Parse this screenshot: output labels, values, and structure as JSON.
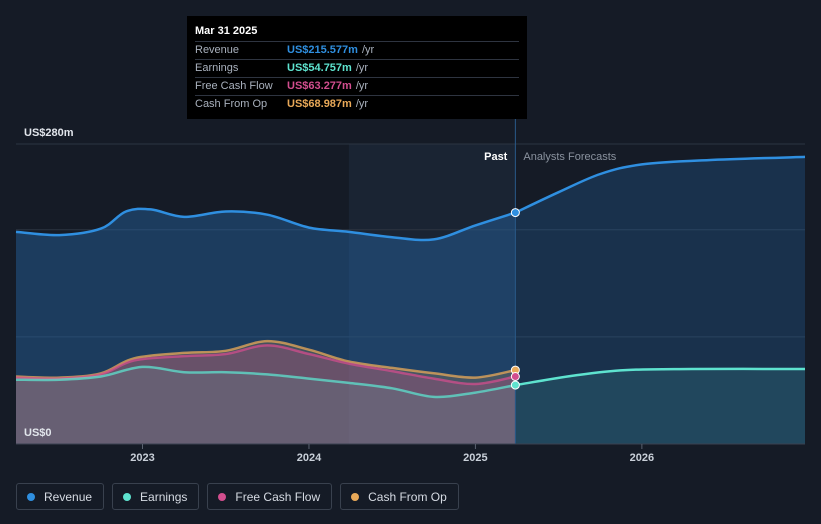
{
  "chart_data": {
    "type": "area",
    "title": "",
    "xlabel": "",
    "ylabel": "",
    "y_label_top": "US$280m",
    "y_label_bottom": "US$0",
    "ylim": [
      0,
      280
    ],
    "xlim": [
      2022.24,
      2026.98
    ],
    "x_ticks": [
      {
        "value": 2023,
        "label": "2023"
      },
      {
        "value": 2024,
        "label": "2024"
      },
      {
        "value": 2025,
        "label": "2025"
      },
      {
        "value": 2026,
        "label": "2026"
      }
    ],
    "past_label": "Past",
    "forecast_label": "Analysts Forecasts",
    "past_end": 2025.24,
    "highlight_start": 2024.24,
    "series": [
      {
        "name": "Revenue",
        "color": "#2f8fe0",
        "past": [
          [
            2022.24,
            198
          ],
          [
            2022.5,
            195
          ],
          [
            2022.75,
            201
          ],
          [
            2022.9,
            217
          ],
          [
            2023.05,
            219
          ],
          [
            2023.25,
            212
          ],
          [
            2023.5,
            217
          ],
          [
            2023.75,
            214
          ],
          [
            2024.0,
            202
          ],
          [
            2024.24,
            198
          ],
          [
            2024.5,
            193
          ],
          [
            2024.75,
            191
          ],
          [
            2025.0,
            204
          ],
          [
            2025.24,
            216
          ]
        ],
        "forecast": [
          [
            2025.24,
            216
          ],
          [
            2025.5,
            235
          ],
          [
            2025.75,
            252
          ],
          [
            2026.0,
            261
          ],
          [
            2026.4,
            265
          ],
          [
            2026.98,
            268
          ]
        ]
      },
      {
        "name": "Earnings",
        "color": "#5ee3cf",
        "past": [
          [
            2022.24,
            60
          ],
          [
            2022.5,
            60
          ],
          [
            2022.75,
            63
          ],
          [
            2023.0,
            72
          ],
          [
            2023.25,
            67
          ],
          [
            2023.5,
            67
          ],
          [
            2023.75,
            65
          ],
          [
            2024.0,
            61
          ],
          [
            2024.24,
            57
          ],
          [
            2024.5,
            52
          ],
          [
            2024.75,
            44
          ],
          [
            2025.0,
            48
          ],
          [
            2025.24,
            55
          ]
        ],
        "forecast": [
          [
            2025.24,
            55
          ],
          [
            2025.6,
            64
          ],
          [
            2025.9,
            69
          ],
          [
            2026.3,
            70
          ],
          [
            2026.98,
            70
          ]
        ]
      },
      {
        "name": "Free Cash Flow",
        "color": "#d24e8e",
        "past": [
          [
            2022.24,
            62
          ],
          [
            2022.5,
            61
          ],
          [
            2022.75,
            65
          ],
          [
            2022.95,
            78
          ],
          [
            2023.25,
            82
          ],
          [
            2023.5,
            84
          ],
          [
            2023.75,
            92
          ],
          [
            2024.0,
            84
          ],
          [
            2024.24,
            75
          ],
          [
            2024.5,
            68
          ],
          [
            2024.75,
            61
          ],
          [
            2025.0,
            56
          ],
          [
            2025.24,
            63
          ]
        ],
        "forecast": []
      },
      {
        "name": "Cash From Op",
        "color": "#e9a958",
        "past": [
          [
            2022.24,
            63
          ],
          [
            2022.5,
            62
          ],
          [
            2022.75,
            66
          ],
          [
            2022.95,
            80
          ],
          [
            2023.25,
            85
          ],
          [
            2023.5,
            87
          ],
          [
            2023.75,
            96
          ],
          [
            2024.0,
            88
          ],
          [
            2024.24,
            77
          ],
          [
            2024.5,
            71
          ],
          [
            2024.75,
            66
          ],
          [
            2025.0,
            62
          ],
          [
            2025.24,
            69
          ]
        ],
        "forecast": []
      }
    ]
  },
  "tooltip": {
    "date": "Mar 31 2025",
    "rows": [
      {
        "label": "Revenue",
        "value": "US$215.577m",
        "unit": "/yr",
        "color": "#2f8fe0"
      },
      {
        "label": "Earnings",
        "value": "US$54.757m",
        "unit": "/yr",
        "color": "#5ee3cf"
      },
      {
        "label": "Free Cash Flow",
        "value": "US$63.277m",
        "unit": "/yr",
        "color": "#d24e8e"
      },
      {
        "label": "Cash From Op",
        "value": "US$68.987m",
        "unit": "/yr",
        "color": "#e9a958"
      }
    ]
  },
  "legend": [
    {
      "label": "Revenue",
      "color": "#2f8fe0"
    },
    {
      "label": "Earnings",
      "color": "#5ee3cf"
    },
    {
      "label": "Free Cash Flow",
      "color": "#d24e8e"
    },
    {
      "label": "Cash From Op",
      "color": "#e9a958"
    }
  ]
}
